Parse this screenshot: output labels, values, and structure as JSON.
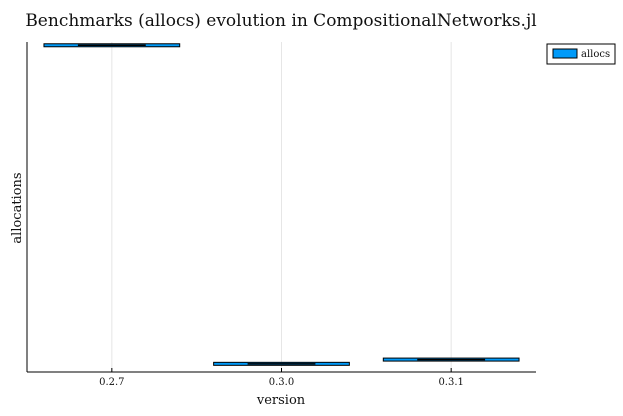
{
  "chart_data": {
    "type": "boxplot",
    "title": "Benchmarks (allocs) evolution in CompositionalNetworks.jl",
    "xlabel": "version",
    "ylabel": "allocations",
    "categories": [
      "0.2.7",
      "0.3.0",
      "0.3.1"
    ],
    "series": [
      {
        "name": "allocs",
        "values": [
          1.0,
          0.025,
          0.038
        ]
      }
    ],
    "ylim": [
      0.0,
      1.01
    ],
    "y_tick_labels_shown": false,
    "grid": true,
    "legend": "top-right",
    "colors": {
      "fill": "#009af9",
      "stroke": "#000000",
      "grid": "#e6e6e6",
      "axis": "#000000"
    }
  }
}
